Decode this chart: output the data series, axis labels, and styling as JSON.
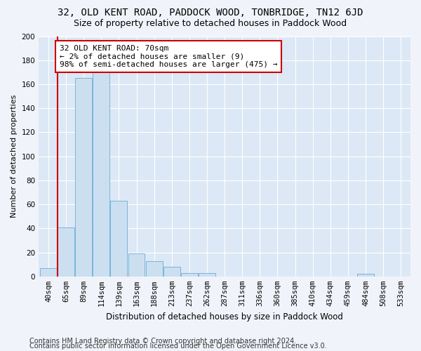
{
  "title": "32, OLD KENT ROAD, PADDOCK WOOD, TONBRIDGE, TN12 6JD",
  "subtitle": "Size of property relative to detached houses in Paddock Wood",
  "xlabel": "Distribution of detached houses by size in Paddock Wood",
  "ylabel": "Number of detached properties",
  "bins": [
    "40sqm",
    "65sqm",
    "89sqm",
    "114sqm",
    "139sqm",
    "163sqm",
    "188sqm",
    "213sqm",
    "237sqm",
    "262sqm",
    "287sqm",
    "311sqm",
    "336sqm",
    "360sqm",
    "385sqm",
    "410sqm",
    "434sqm",
    "459sqm",
    "484sqm",
    "508sqm",
    "533sqm"
  ],
  "values": [
    7,
    41,
    165,
    170,
    63,
    19,
    13,
    8,
    3,
    3,
    0,
    0,
    0,
    0,
    0,
    0,
    0,
    0,
    2,
    0,
    0
  ],
  "bar_color": "#ccdff0",
  "bar_edge_color": "#6aaed6",
  "vline_color": "#cc0000",
  "annotation_text": "32 OLD KENT ROAD: 70sqm\n← 2% of detached houses are smaller (9)\n98% of semi-detached houses are larger (475) →",
  "annotation_box_facecolor": "#ffffff",
  "annotation_box_edgecolor": "#cc0000",
  "ylim": [
    0,
    200
  ],
  "yticks": [
    0,
    20,
    40,
    60,
    80,
    100,
    120,
    140,
    160,
    180,
    200
  ],
  "footer1": "Contains HM Land Registry data © Crown copyright and database right 2024.",
  "footer2": "Contains public sector information licensed under the Open Government Licence v3.0.",
  "fig_bg_color": "#f0f4fa",
  "plot_bg_color": "#dce8f5",
  "grid_color": "#ffffff",
  "title_fontsize": 10,
  "subtitle_fontsize": 9,
  "axis_label_fontsize": 8,
  "tick_fontsize": 7.5,
  "annotation_fontsize": 8,
  "footer_fontsize": 7
}
